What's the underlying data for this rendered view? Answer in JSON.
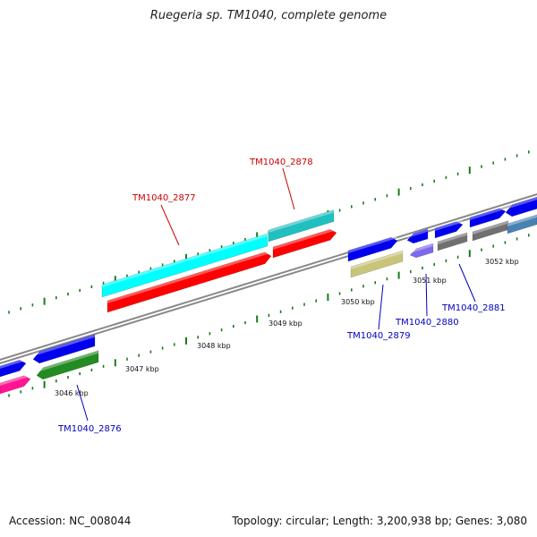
{
  "title": "Ruegeria sp. TM1040, complete genome",
  "footer": {
    "accession": "Accession: NC_008044",
    "summary": "Topology: circular; Length: 3,200,938 bp; Genes: 3,080"
  },
  "colors": {
    "backbone": "#808080",
    "forward_label": "#cc0000",
    "reverse_label": "#0000bb",
    "tick": "#1a7a1a"
  },
  "ticks": [
    {
      "label": "3046 kbp"
    },
    {
      "label": "3047 kbp"
    },
    {
      "label": "3048 kbp"
    },
    {
      "label": "3049 kbp"
    },
    {
      "label": "3050 kbp"
    },
    {
      "label": "3051 kbp"
    },
    {
      "label": "3052 kbp"
    }
  ],
  "gene_labels": [
    {
      "text": "TM1040_2878",
      "strand": "forward"
    },
    {
      "text": "TM1040_2877",
      "strand": "forward"
    },
    {
      "text": "TM1040_2876",
      "strand": "reverse"
    },
    {
      "text": "TM1040_2879",
      "strand": "reverse"
    },
    {
      "text": "TM1040_2880",
      "strand": "reverse"
    },
    {
      "text": "TM1040_2881",
      "strand": "reverse"
    }
  ],
  "feature_colors": {
    "cyan": "#00ffff",
    "teal": "#20c0c0",
    "red": "#ff0000",
    "blue": "#0000ee",
    "green": "#228b22",
    "magenta": "#ff1493",
    "khaki": "#c8c47a",
    "purple": "#7b68ee",
    "gray": "#707070",
    "steelblue": "#4682b4"
  }
}
